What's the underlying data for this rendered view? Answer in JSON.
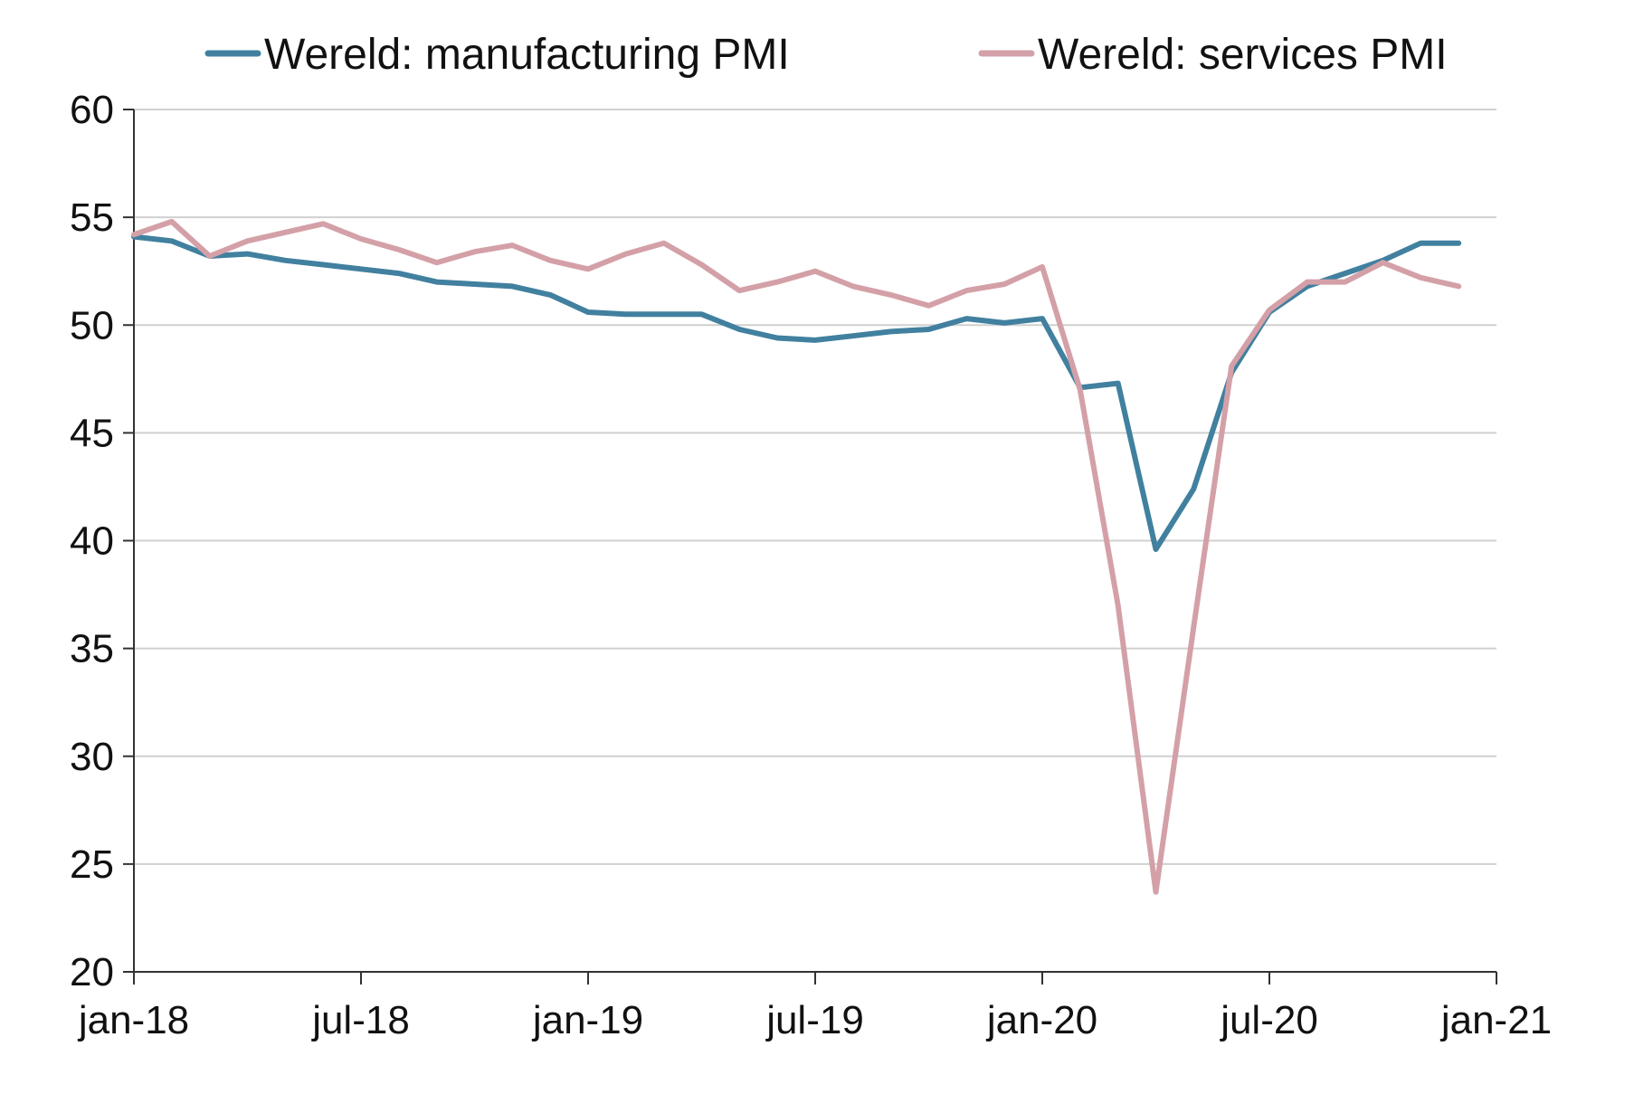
{
  "chart_data": {
    "type": "line",
    "title": "",
    "xlabel": "",
    "ylabel": "",
    "ylim": [
      20,
      60
    ],
    "y_ticks": [
      20,
      25,
      30,
      35,
      40,
      45,
      50,
      55,
      60
    ],
    "x_range": [
      "2018-01",
      "2021-01"
    ],
    "x_ticks": [
      {
        "date": "2018-01",
        "label": "jan-18"
      },
      {
        "date": "2018-07",
        "label": "jul-18"
      },
      {
        "date": "2019-01",
        "label": "jan-19"
      },
      {
        "date": "2019-07",
        "label": "jul-19"
      },
      {
        "date": "2020-01",
        "label": "jan-20"
      },
      {
        "date": "2020-07",
        "label": "jul-20"
      },
      {
        "date": "2021-01",
        "label": "jan-21"
      }
    ],
    "grid": true,
    "legend_position": "top",
    "x": [
      "2018-01",
      "2018-02",
      "2018-03",
      "2018-04",
      "2018-05",
      "2018-06",
      "2018-07",
      "2018-08",
      "2018-09",
      "2018-10",
      "2018-11",
      "2018-12",
      "2019-01",
      "2019-02",
      "2019-03",
      "2019-04",
      "2019-05",
      "2019-06",
      "2019-07",
      "2019-08",
      "2019-09",
      "2019-10",
      "2019-11",
      "2019-12",
      "2020-01",
      "2020-02",
      "2020-03",
      "2020-04",
      "2020-05",
      "2020-06",
      "2020-07",
      "2020-08",
      "2020-09",
      "2020-10",
      "2020-11",
      "2020-12"
    ],
    "series": [
      {
        "name": "Wereld: manufacturing PMI",
        "color": "#41809f",
        "values": [
          54.1,
          53.9,
          53.2,
          53.3,
          53.0,
          52.8,
          52.6,
          52.4,
          52.0,
          51.9,
          51.8,
          51.4,
          50.6,
          50.5,
          50.5,
          50.5,
          49.8,
          49.4,
          49.3,
          49.5,
          49.7,
          49.8,
          50.3,
          50.1,
          50.3,
          47.1,
          47.3,
          39.6,
          42.4,
          47.8,
          50.6,
          51.8,
          52.4,
          53.0,
          53.8,
          53.8
        ]
      },
      {
        "name": "Wereld: services PMI",
        "color": "#d4a0a8",
        "values": [
          54.2,
          54.8,
          53.2,
          53.9,
          54.3,
          54.7,
          54.0,
          53.5,
          52.9,
          53.4,
          53.7,
          53.0,
          52.6,
          53.3,
          53.8,
          52.8,
          51.6,
          52.0,
          52.5,
          51.8,
          51.4,
          50.9,
          51.6,
          51.9,
          52.7,
          47.0,
          37.0,
          23.7,
          36.0,
          48.1,
          50.7,
          52.0,
          52.0,
          52.9,
          52.2,
          51.8
        ]
      }
    ]
  }
}
